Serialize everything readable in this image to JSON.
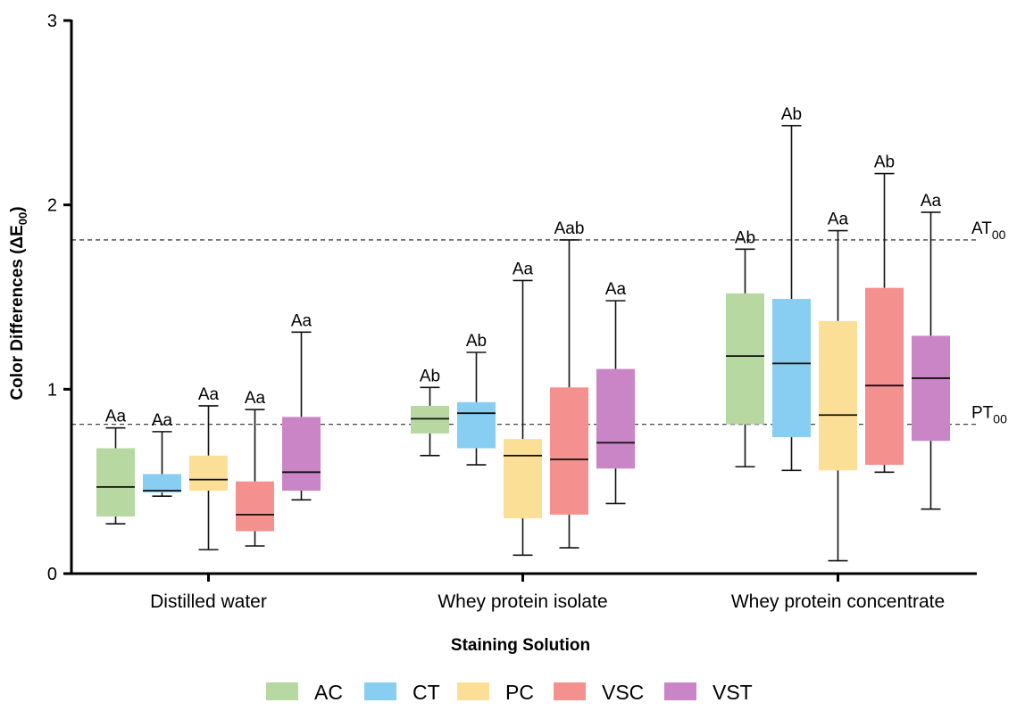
{
  "chart_data": {
    "type": "box",
    "ylabel_main": "Color Differences (ΔE",
    "ylabel_sub": "00",
    "ylabel_close": ")",
    "xlabel": "Staining Solution",
    "ylim": [
      0,
      3
    ],
    "yticks": [
      "0",
      "1",
      "2",
      "3"
    ],
    "categories": [
      "Distilled water",
      "Whey protein isolate",
      "Whey protein concentrate"
    ],
    "reference_lines": [
      {
        "main": "AT",
        "sub": "00",
        "y": 1.81
      },
      {
        "main": "PT",
        "sub": "00",
        "y": 0.81
      }
    ],
    "series": [
      {
        "name": "AC",
        "color": "#b8d8a1",
        "boxes": [
          {
            "min": 0.27,
            "q1": 0.31,
            "median": 0.47,
            "q3": 0.68,
            "max": 0.79,
            "label": "Aa"
          },
          {
            "min": 0.64,
            "q1": 0.76,
            "median": 0.84,
            "q3": 0.91,
            "max": 1.01,
            "label": "Ab"
          },
          {
            "min": 0.58,
            "q1": 0.81,
            "median": 1.18,
            "q3": 1.52,
            "max": 1.76,
            "label": "Ab"
          }
        ]
      },
      {
        "name": "CT",
        "color": "#88cdf2",
        "boxes": [
          {
            "min": 0.42,
            "q1": 0.44,
            "median": 0.45,
            "q3": 0.54,
            "max": 0.77,
            "label": "Aa"
          },
          {
            "min": 0.59,
            "q1": 0.68,
            "median": 0.87,
            "q3": 0.93,
            "max": 1.2,
            "label": "Ab"
          },
          {
            "min": 0.56,
            "q1": 0.74,
            "median": 1.14,
            "q3": 1.49,
            "max": 2.43,
            "label": "Ab"
          }
        ]
      },
      {
        "name": "PC",
        "color": "#fbdf96",
        "boxes": [
          {
            "min": 0.13,
            "q1": 0.45,
            "median": 0.51,
            "q3": 0.64,
            "max": 0.91,
            "label": "Aa"
          },
          {
            "min": 0.1,
            "q1": 0.3,
            "median": 0.64,
            "q3": 0.73,
            "max": 1.59,
            "label": "Aa"
          },
          {
            "min": 0.07,
            "q1": 0.56,
            "median": 0.86,
            "q3": 1.37,
            "max": 1.86,
            "label": "Aa"
          }
        ]
      },
      {
        "name": "VSC",
        "color": "#f4918e",
        "boxes": [
          {
            "min": 0.15,
            "q1": 0.23,
            "median": 0.32,
            "q3": 0.5,
            "max": 0.89,
            "label": "Aa"
          },
          {
            "min": 0.14,
            "q1": 0.32,
            "median": 0.62,
            "q3": 1.01,
            "max": 1.81,
            "label": "Aab"
          },
          {
            "min": 0.55,
            "q1": 0.59,
            "median": 1.02,
            "q3": 1.55,
            "max": 2.17,
            "label": "Ab"
          }
        ]
      },
      {
        "name": "VST",
        "color": "#c985c6",
        "boxes": [
          {
            "min": 0.4,
            "q1": 0.45,
            "median": 0.55,
            "q3": 0.85,
            "max": 1.31,
            "label": "Aa"
          },
          {
            "min": 0.38,
            "q1": 0.57,
            "median": 0.71,
            "q3": 1.11,
            "max": 1.48,
            "label": "Aa"
          },
          {
            "min": 0.35,
            "q1": 0.72,
            "median": 1.06,
            "q3": 1.29,
            "max": 1.96,
            "label": "Aa"
          }
        ]
      }
    ]
  }
}
